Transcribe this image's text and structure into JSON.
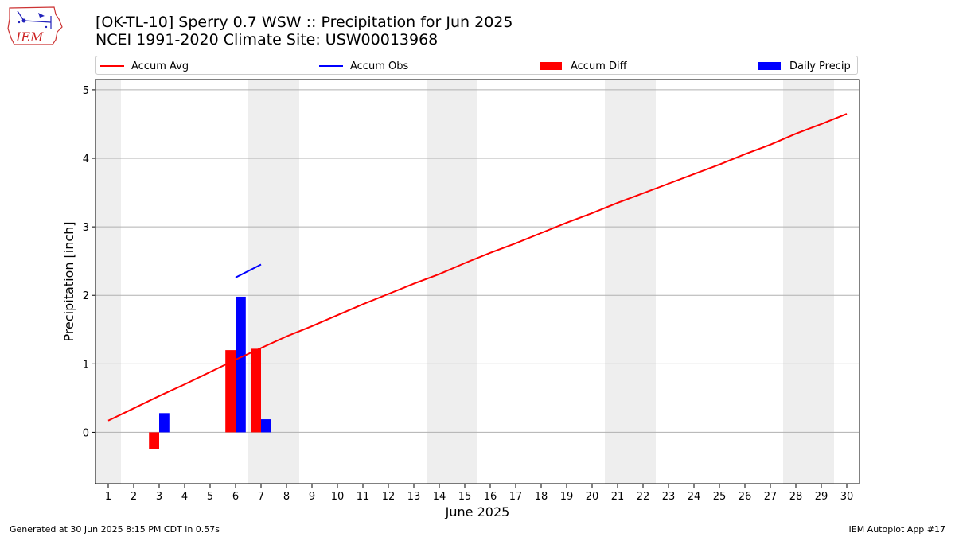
{
  "header": {
    "title_line1": "[OK-TL-10] Sperry 0.7 WSW :: Precipitation for Jun 2025",
    "title_line2": "NCEI 1991-2020 Climate Site: USW00013968",
    "logo_text": "IEM"
  },
  "footer": {
    "left": "Generated at 30 Jun 2025 8:15 PM CDT in 0.57s",
    "right": "IEM Autoplot App #17"
  },
  "legend": [
    {
      "label": "Accum Avg",
      "kind": "line",
      "color": "#ff0000"
    },
    {
      "label": "Accum Obs",
      "kind": "line",
      "color": "#0000ff"
    },
    {
      "label": "Accum Diff",
      "kind": "box",
      "color": "#ff0000"
    },
    {
      "label": "Daily Precip",
      "kind": "box",
      "color": "#0000ff"
    }
  ],
  "chart_data": {
    "type": "bar",
    "xlabel": "June 2025",
    "ylabel": "Precipitation [inch]",
    "xlim": [
      0.5,
      30.5
    ],
    "ylim": [
      -0.75,
      5.15
    ],
    "x_ticks": [
      1,
      2,
      3,
      4,
      5,
      6,
      7,
      8,
      9,
      10,
      11,
      12,
      13,
      14,
      15,
      16,
      17,
      18,
      19,
      20,
      21,
      22,
      23,
      24,
      25,
      26,
      27,
      28,
      29,
      30
    ],
    "y_ticks": [
      0,
      1,
      2,
      3,
      4,
      5
    ],
    "grid": "y",
    "legend_position": "top",
    "weekend_shading": [
      [
        0.5,
        1.5
      ],
      [
        6.5,
        8.5
      ],
      [
        13.5,
        15.5
      ],
      [
        20.5,
        22.5
      ],
      [
        27.5,
        29.5
      ]
    ],
    "series": [
      {
        "name": "Accum Avg",
        "kind": "line",
        "color": "#ff0000",
        "x": [
          1,
          2,
          3,
          4,
          5,
          6,
          7,
          8,
          9,
          10,
          11,
          12,
          13,
          14,
          15,
          16,
          17,
          18,
          19,
          20,
          21,
          22,
          23,
          24,
          25,
          26,
          27,
          28,
          29,
          30
        ],
        "y": [
          0.17,
          0.35,
          0.53,
          0.7,
          0.88,
          1.06,
          1.23,
          1.4,
          1.55,
          1.71,
          1.87,
          2.02,
          2.17,
          2.31,
          2.47,
          2.62,
          2.76,
          2.91,
          3.06,
          3.2,
          3.35,
          3.49,
          3.63,
          3.77,
          3.91,
          4.06,
          4.2,
          4.36,
          4.5,
          4.65
        ]
      },
      {
        "name": "Accum Obs",
        "kind": "line",
        "color": "#0000ff",
        "x": [
          6,
          7
        ],
        "y": [
          2.26,
          2.45
        ]
      },
      {
        "name": "Accum Diff",
        "kind": "bar",
        "color": "#ff0000",
        "offset": -0.2,
        "x": [
          3,
          6,
          7
        ],
        "y": [
          -0.25,
          1.2,
          1.22
        ]
      },
      {
        "name": "Daily Precip",
        "kind": "bar",
        "color": "#0000ff",
        "offset": 0.2,
        "x": [
          3,
          6,
          7
        ],
        "y": [
          0.28,
          1.98,
          0.19
        ]
      }
    ]
  }
}
